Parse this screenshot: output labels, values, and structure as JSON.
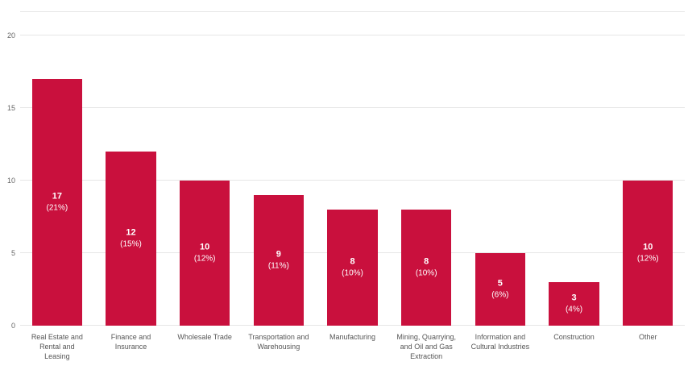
{
  "chart_data": {
    "type": "bar",
    "title": "",
    "categories": [
      "Real Estate and Rental and Leasing",
      "Finance and Insurance",
      "Wholesale Trade",
      "Transportation and Warehousing",
      "Manufacturing",
      "Mining, Quarrying, and Oil and Gas Extraction",
      "Information and Cultural Industries",
      "Construction",
      "Other"
    ],
    "values": [
      17,
      12,
      10,
      9,
      8,
      8,
      5,
      3,
      10
    ],
    "value_labels": [
      "17",
      "12",
      "10",
      "9",
      "8",
      "8",
      "5",
      "3",
      "10"
    ],
    "percent_labels": [
      "(21%)",
      "(15%)",
      "(12%)",
      "(11%)",
      "(10%)",
      "(10%)",
      "(6%)",
      "(4%)",
      "(12%)"
    ],
    "xlabel": "",
    "ylabel": "",
    "ylim": [
      0,
      20
    ],
    "y_ticks": [
      0,
      5,
      10,
      15,
      20
    ],
    "grid": true,
    "legend": "none",
    "bar_color": "#c9103d",
    "bar_label_color": "#ffffff",
    "axis_text_color": "#666666",
    "gridline_color": "#e6e6e6"
  }
}
